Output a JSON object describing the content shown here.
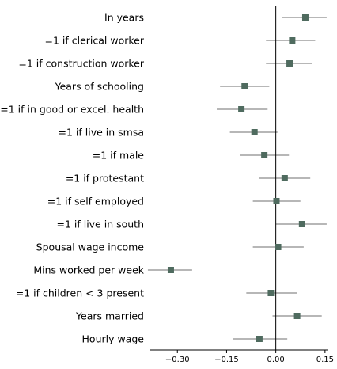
{
  "chart_data": {
    "type": "scatter",
    "style": "coefficient-plot",
    "title": "",
    "xlabel": "",
    "ylabel": "",
    "xlim": [
      -0.385,
      0.16
    ],
    "xticks": [
      -0.3,
      -0.15,
      0.0,
      0.15
    ],
    "xtick_labels": [
      "−0.30",
      "−0.15",
      "0.00",
      "0.15"
    ],
    "reference_line": 0.0,
    "grid": false,
    "legend": "none",
    "colors": {
      "marker": "#4f6b5f",
      "ci": "#8c8c8c",
      "ref": "#000000"
    },
    "points": [
      {
        "label": "In years",
        "estimate": 0.09,
        "ci_low": 0.02,
        "ci_high": 0.155
      },
      {
        "label": "=1 if clerical worker",
        "estimate": 0.05,
        "ci_low": -0.03,
        "ci_high": 0.12
      },
      {
        "label": "=1 if construction worker",
        "estimate": 0.042,
        "ci_low": -0.03,
        "ci_high": 0.11
      },
      {
        "label": "Years of schooling",
        "estimate": -0.095,
        "ci_low": -0.17,
        "ci_high": -0.02
      },
      {
        "label": "=1 if in good or excel. health",
        "estimate": -0.105,
        "ci_low": -0.18,
        "ci_high": -0.025
      },
      {
        "label": "=1 if live in smsa",
        "estimate": -0.065,
        "ci_low": -0.14,
        "ci_high": 0.005
      },
      {
        "label": "=1 if male",
        "estimate": -0.035,
        "ci_low": -0.11,
        "ci_high": 0.04
      },
      {
        "label": "=1 if protestant",
        "estimate": 0.027,
        "ci_low": -0.05,
        "ci_high": 0.105
      },
      {
        "label": "=1 if self employed",
        "estimate": 0.002,
        "ci_low": -0.07,
        "ci_high": 0.075
      },
      {
        "label": "=1 if live in south",
        "estimate": 0.08,
        "ci_low": 0.0,
        "ci_high": 0.155
      },
      {
        "label": "Spousal wage income",
        "estimate": 0.007,
        "ci_low": -0.07,
        "ci_high": 0.085
      },
      {
        "label": "Mins worked per week",
        "estimate": -0.32,
        "ci_low": -0.39,
        "ci_high": -0.255
      },
      {
        "label": "=1 if children < 3 present",
        "estimate": -0.015,
        "ci_low": -0.09,
        "ci_high": 0.065
      },
      {
        "label": "Years married",
        "estimate": 0.065,
        "ci_low": -0.01,
        "ci_high": 0.14
      },
      {
        "label": "Hourly wage",
        "estimate": -0.05,
        "ci_low": -0.13,
        "ci_high": 0.035
      }
    ]
  }
}
